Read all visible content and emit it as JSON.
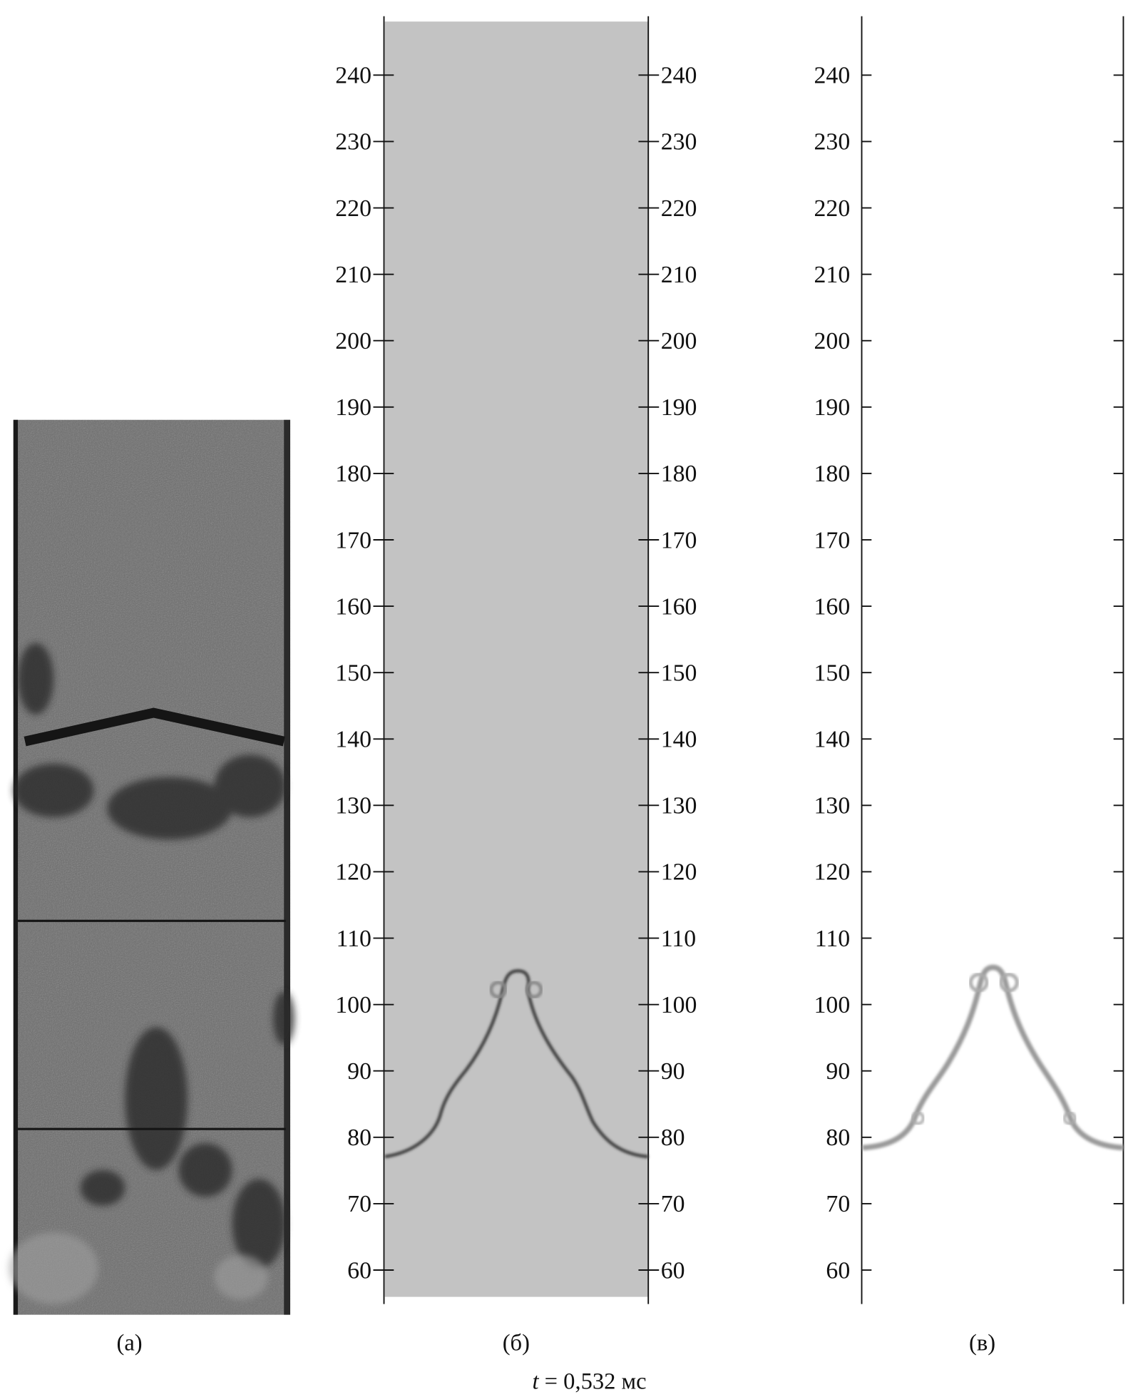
{
  "panels": {
    "a": {
      "label": "(а)"
    },
    "b": {
      "label": "(б)"
    },
    "c": {
      "label": "(в)"
    }
  },
  "caption": {
    "t_symbol": "t",
    "rest": " = 0,532 мс"
  },
  "axis": {
    "ticks": [
      240,
      230,
      220,
      210,
      200,
      190,
      180,
      170,
      160,
      150,
      140,
      130,
      120,
      110,
      100,
      90,
      80,
      70,
      60
    ]
  },
  "colors": {
    "simulation_background": "#c3c3c3",
    "photo_background": "#6c6c6c",
    "interface_dark": "#3a3a3a",
    "interface_light": "#a8a8a8"
  }
}
